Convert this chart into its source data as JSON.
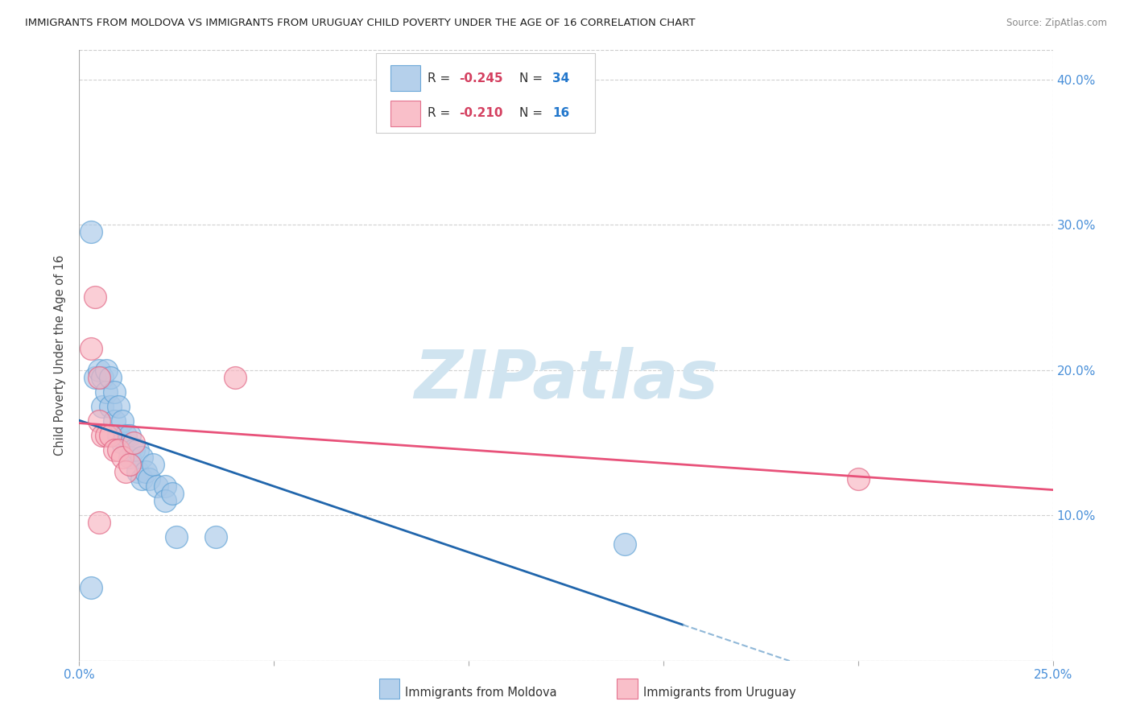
{
  "title": "IMMIGRANTS FROM MOLDOVA VS IMMIGRANTS FROM URUGUAY CHILD POVERTY UNDER THE AGE OF 16 CORRELATION CHART",
  "source": "Source: ZipAtlas.com",
  "ylabel": "Child Poverty Under the Age of 16",
  "xlim": [
    0,
    0.25
  ],
  "ylim": [
    0,
    0.42
  ],
  "xtick_positions": [
    0.0,
    0.05,
    0.1,
    0.15,
    0.2,
    0.25
  ],
  "xtick_labels": [
    "0.0%",
    "",
    "",
    "",
    "",
    "25.0%"
  ],
  "ytick_positions": [
    0.0,
    0.1,
    0.2,
    0.3,
    0.4
  ],
  "right_ytick_labels": [
    "",
    "10.0%",
    "20.0%",
    "30.0%",
    "40.0%"
  ],
  "moldova_color": "#a8c8e8",
  "moldova_edge": "#5a9fd4",
  "uruguay_color": "#f8b4c0",
  "uruguay_edge": "#e06080",
  "moldova_R": -0.245,
  "moldova_N": 34,
  "uruguay_R": -0.21,
  "uruguay_N": 16,
  "legend_moldova": "Immigrants from Moldova",
  "legend_uruguay": "Immigrants from Uruguay",
  "moldova_x": [
    0.003,
    0.004,
    0.005,
    0.006,
    0.006,
    0.007,
    0.007,
    0.008,
    0.008,
    0.009,
    0.009,
    0.01,
    0.01,
    0.011,
    0.011,
    0.012,
    0.013,
    0.013,
    0.014,
    0.015,
    0.015,
    0.016,
    0.016,
    0.017,
    0.018,
    0.019,
    0.02,
    0.022,
    0.022,
    0.024,
    0.025,
    0.035,
    0.14,
    0.003
  ],
  "moldova_y": [
    0.295,
    0.195,
    0.2,
    0.195,
    0.175,
    0.2,
    0.185,
    0.195,
    0.175,
    0.185,
    0.165,
    0.175,
    0.155,
    0.165,
    0.15,
    0.155,
    0.155,
    0.14,
    0.145,
    0.145,
    0.13,
    0.14,
    0.125,
    0.13,
    0.125,
    0.135,
    0.12,
    0.12,
    0.11,
    0.115,
    0.085,
    0.085,
    0.08,
    0.05
  ],
  "uruguay_x": [
    0.003,
    0.004,
    0.005,
    0.005,
    0.006,
    0.007,
    0.008,
    0.009,
    0.01,
    0.011,
    0.012,
    0.013,
    0.014,
    0.04,
    0.2,
    0.005
  ],
  "uruguay_y": [
    0.215,
    0.25,
    0.195,
    0.165,
    0.155,
    0.155,
    0.155,
    0.145,
    0.145,
    0.14,
    0.13,
    0.135,
    0.15,
    0.195,
    0.125,
    0.095
  ],
  "watermark": "ZIPatlas",
  "watermark_color": "#d0e4f0",
  "background_color": "#ffffff",
  "grid_color": "#cccccc",
  "blue_line_color": "#2166ac",
  "pink_line_color": "#e8527a",
  "blue_dash_color": "#90b8d8"
}
